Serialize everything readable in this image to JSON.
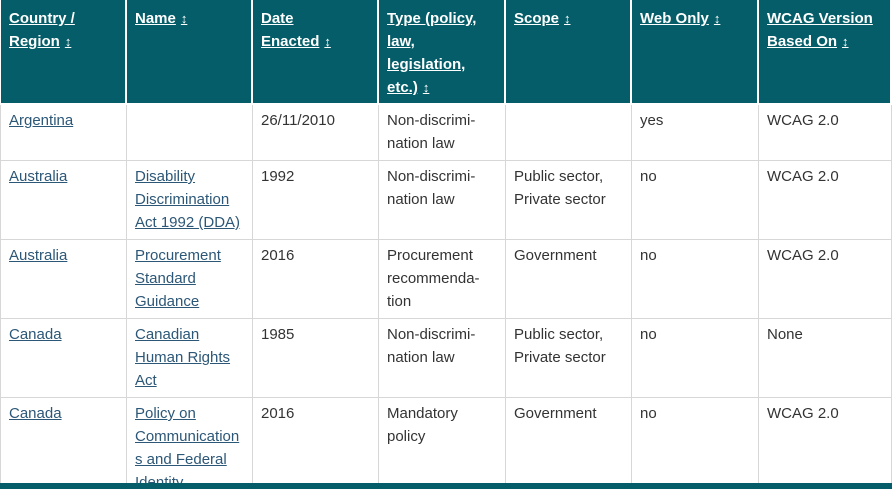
{
  "colors": {
    "header_bg": "#045d68",
    "header_text": "#ffffff",
    "link": "#2c5777",
    "body_text": "#333333",
    "border": "#d7d7d7"
  },
  "table": {
    "sort_icon": "↕",
    "columns": [
      {
        "label": "Country /\nRegion"
      },
      {
        "label": "Name"
      },
      {
        "label": "Date\nEnacted"
      },
      {
        "label": "Type (policy,\nlaw,\nlegislation,\netc.)"
      },
      {
        "label": "Scope"
      },
      {
        "label": "Web Only"
      },
      {
        "label": "WCAG Version\nBased On"
      }
    ],
    "rows": [
      {
        "country": "Argentina",
        "name": "",
        "date_enacted": "26/11/2010",
        "type": "Non-discrimi­nation law",
        "scope": "",
        "web_only": "yes",
        "wcag_version": "WCAG 2.0"
      },
      {
        "country": "Australia",
        "name": "Disability Discrimination Act 1992 (DDA)",
        "date_enacted": "1992",
        "type": "Non-discrimi­nation law",
        "scope": "Public sector, Private sector",
        "web_only": "no",
        "wcag_version": "WCAG 2.0"
      },
      {
        "country": "Australia",
        "name": "Procurement Standard Guidance",
        "date_enacted": "2016",
        "type": "Procurement recommenda­tion",
        "scope": "Government",
        "web_only": "no",
        "wcag_version": "WCAG 2.0"
      },
      {
        "country": "Canada",
        "name": "Canadian Human Rights Act",
        "date_enacted": "1985",
        "type": "Non-discrimi­nation law",
        "scope": "Public sector, Private sector",
        "web_only": "no",
        "wcag_version": "None"
      },
      {
        "country": "Canada",
        "name": "Policy on Communications and Federal Identity",
        "date_enacted": "2016",
        "type": "Mandatory policy",
        "scope": "Government",
        "web_only": "no",
        "wcag_version": "WCAG 2.0"
      }
    ]
  }
}
